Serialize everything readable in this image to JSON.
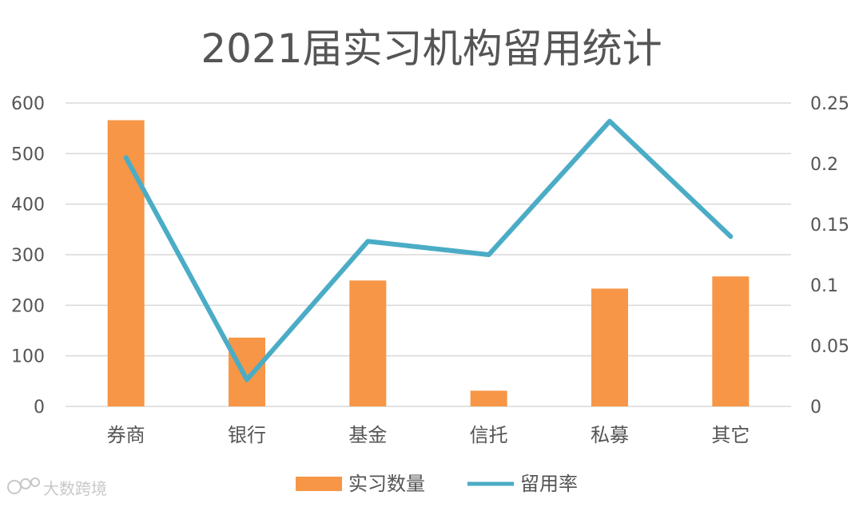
{
  "watermark": "大数跨境",
  "chart_data": {
    "type": "bar+line",
    "title": "2021届实习机构留用统计",
    "categories": [
      "券商",
      "银行",
      "基金",
      "信托",
      "私募",
      "其它"
    ],
    "series": [
      {
        "name": "实习数量",
        "type": "bar",
        "axis": "left",
        "color": "#F79646",
        "values": [
          566,
          136,
          249,
          31,
          233,
          257
        ]
      },
      {
        "name": "留用率",
        "type": "line",
        "axis": "right",
        "color": "#4BACC6",
        "values": [
          0.205,
          0.022,
          0.136,
          0.125,
          0.235,
          0.14
        ]
      }
    ],
    "y_left": {
      "min": 0,
      "max": 600,
      "ticks": [
        0,
        100,
        200,
        300,
        400,
        500,
        600
      ],
      "tick_labels": [
        "0",
        "100",
        "200",
        "300",
        "400",
        "500",
        "600"
      ]
    },
    "y_right": {
      "min": 0,
      "max": 0.25,
      "ticks": [
        0,
        0.05,
        0.1,
        0.15,
        0.2,
        0.25
      ],
      "tick_labels": [
        "0",
        "0.05",
        "0.1",
        "0.15",
        "0.2",
        "0.25"
      ]
    },
    "grid": true,
    "legend_position": "bottom"
  }
}
